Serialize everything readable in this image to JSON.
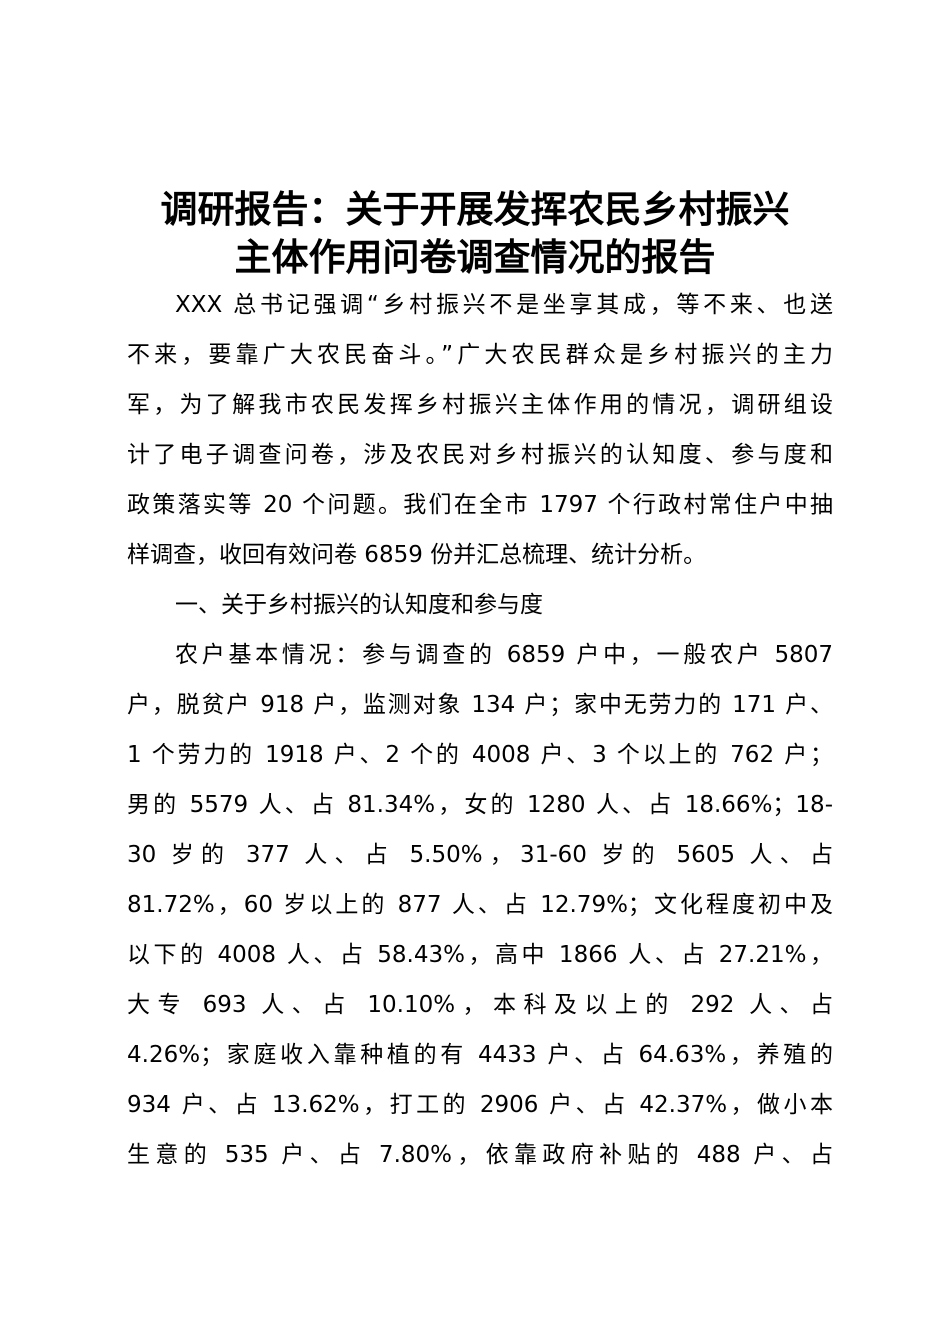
{
  "title": {
    "lines": [
      "调研报告：关于开展发挥农民乡村振兴",
      "主体作用问卷调查情况的报告"
    ]
  },
  "paragraphs": [
    {
      "lines": [
        "XXX 总书记强调“乡村振兴不是坐享其成，等不来、也送",
        "不来，要靠广大农民奋斗。”广大农民群众是乡村振兴的主力",
        "军，为了解我市农民发挥乡村振兴主体作用的情况，调研组设",
        "计了电子调查问卷，涉及农民对乡村振兴的认知度、参与度和",
        "政策落实等 20 个问题。我们在全市 1797 个行政村常住户中抽",
        "样调查，收回有效问卷 6859 份并汇总梳理、统计分析。"
      ]
    },
    {
      "lines": [
        "一、关于乡村振兴的认知度和参与度"
      ]
    },
    {
      "lines": [
        "农户基本情况：参与调查的 6859 户中，一般农户 5807",
        "户，脱贫户 918 户，监测对象 134 户；家中无劳力的 171 户、",
        "1 个劳力的 1918 户、2 个的 4008 户、3 个以上的 762 户；",
        "男的 5579 人、占 81.34%，女的 1280 人、占 18.66%；18-",
        "30 岁的 377 人、占 5.50%，31-60 岁的 5605 人、占",
        "81.72%，60 岁以上的 877 人、占 12.79%；文化程度初中及",
        "以下的 4008 人、占 58.43%，高中 1866 人、占 27.21%，",
        "大专 693 人、占 10.10%，本科及以上的 292 人、占",
        "4.26%；家庭收入靠种植的有 4433 户、占 64.63%，养殖的",
        "934 户、占 13.62%，打工的 2906 户、占 42.37%，做小本",
        "生意的 535 户、占 7.80%，依靠政府补贴的 488 户、占"
      ]
    }
  ]
}
